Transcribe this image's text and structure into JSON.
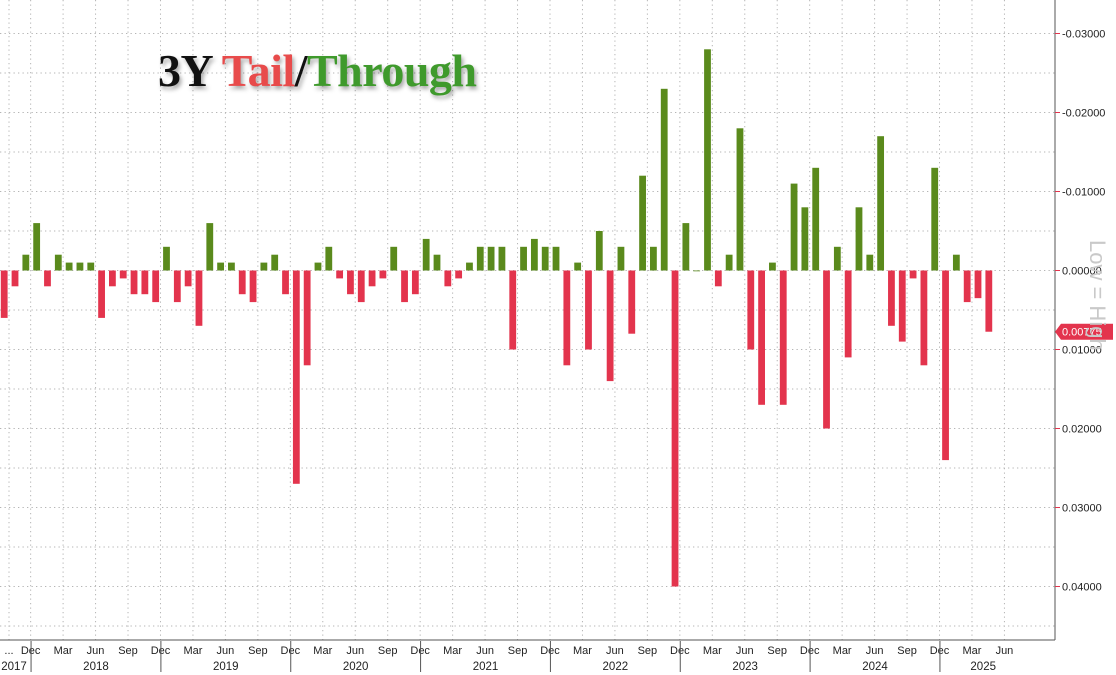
{
  "title": {
    "lead": "3Y ",
    "tail": "Tail",
    "slash": "/",
    "through": "Through"
  },
  "side_label": "Low = High",
  "colors": {
    "tail": "#e3344d",
    "through": "#5a8a1c",
    "last_badge": "#e3344d",
    "grid": "#b5b5b5"
  },
  "chart_data": {
    "type": "bar",
    "y_axis": {
      "inverted": true,
      "position": "right",
      "ylim": [
        -0.035,
        0.046
      ]
    },
    "y_ticks": [
      {
        "value": -0.03,
        "label": "-0.03000"
      },
      {
        "value": -0.02,
        "label": "-0.02000"
      },
      {
        "value": -0.01,
        "label": "-0.01000"
      },
      {
        "value": 0.0,
        "label": "0.00000"
      },
      {
        "value": 0.01,
        "label": "0.01000"
      },
      {
        "value": 0.02,
        "label": "0.02000"
      },
      {
        "value": 0.03,
        "label": "0.03000"
      },
      {
        "value": 0.04,
        "label": "0.04000"
      }
    ],
    "last_value_label": "0.00775",
    "last_value": 0.00775,
    "grid": true,
    "x_month_labels": [
      {
        "label": "...",
        "index": 0
      },
      {
        "label": "Dec",
        "index": 2
      },
      {
        "label": "Mar",
        "index": 5
      },
      {
        "label": "Jun",
        "index": 8
      },
      {
        "label": "Sep",
        "index": 11
      },
      {
        "label": "Dec",
        "index": 14
      },
      {
        "label": "Mar",
        "index": 17
      },
      {
        "label": "Jun",
        "index": 20
      },
      {
        "label": "Sep",
        "index": 23
      },
      {
        "label": "Dec",
        "index": 26
      },
      {
        "label": "Mar",
        "index": 29
      },
      {
        "label": "Jun",
        "index": 32
      },
      {
        "label": "Sep",
        "index": 35
      },
      {
        "label": "Dec",
        "index": 38
      },
      {
        "label": "Mar",
        "index": 41
      },
      {
        "label": "Jun",
        "index": 44
      },
      {
        "label": "Sep",
        "index": 47
      },
      {
        "label": "Dec",
        "index": 50
      },
      {
        "label": "Mar",
        "index": 53
      },
      {
        "label": "Jun",
        "index": 56
      },
      {
        "label": "Sep",
        "index": 59
      },
      {
        "label": "Dec",
        "index": 62
      },
      {
        "label": "Mar",
        "index": 65
      },
      {
        "label": "Jun",
        "index": 68
      },
      {
        "label": "Sep",
        "index": 71
      },
      {
        "label": "Dec",
        "index": 74
      },
      {
        "label": "Mar",
        "index": 77
      },
      {
        "label": "Jun",
        "index": 80
      },
      {
        "label": "Sep",
        "index": 83
      },
      {
        "label": "Dec",
        "index": 86
      },
      {
        "label": "Mar",
        "index": 89
      },
      {
        "label": "Jun",
        "index": 92
      }
    ],
    "x_year_labels": [
      {
        "label": "2017",
        "start": 0,
        "end": 2
      },
      {
        "label": "2018",
        "start": 3,
        "end": 14
      },
      {
        "label": "2019",
        "start": 15,
        "end": 26
      },
      {
        "label": "2020",
        "start": 27,
        "end": 38
      },
      {
        "label": "2021",
        "start": 39,
        "end": 50
      },
      {
        "label": "2022",
        "start": 51,
        "end": 62
      },
      {
        "label": "2023",
        "start": 63,
        "end": 74
      },
      {
        "label": "2024",
        "start": 75,
        "end": 86
      },
      {
        "label": "2025",
        "start": 87,
        "end": 94
      }
    ],
    "values": [
      0.006,
      0.002,
      -0.002,
      -0.006,
      0.002,
      -0.002,
      -0.001,
      -0.001,
      -0.001,
      0.006,
      0.002,
      0.001,
      0.003,
      0.003,
      0.004,
      -0.003,
      0.004,
      0.002,
      0.007,
      -0.006,
      -0.001,
      -0.001,
      0.003,
      0.004,
      -0.001,
      -0.002,
      0.003,
      0.027,
      0.012,
      -0.001,
      -0.003,
      0.001,
      0.003,
      0.004,
      0.002,
      0.001,
      -0.003,
      0.004,
      0.003,
      -0.004,
      -0.002,
      0.002,
      0.001,
      -0.001,
      -0.003,
      -0.003,
      -0.003,
      0.01,
      -0.003,
      -0.004,
      -0.003,
      -0.003,
      0.012,
      -0.001,
      0.01,
      -0.005,
      0.014,
      -0.003,
      0.008,
      -0.012,
      -0.003,
      -0.023,
      0.04,
      -0.006,
      0.0,
      -0.028,
      0.002,
      -0.002,
      -0.018,
      0.01,
      0.017,
      -0.001,
      0.017,
      -0.011,
      -0.008,
      -0.013,
      0.02,
      -0.003,
      0.011,
      -0.008,
      -0.002,
      -0.017,
      0.007,
      0.009,
      0.001,
      0.012,
      -0.013,
      0.024,
      -0.002,
      0.004,
      0.0035,
      0.00775
    ]
  }
}
